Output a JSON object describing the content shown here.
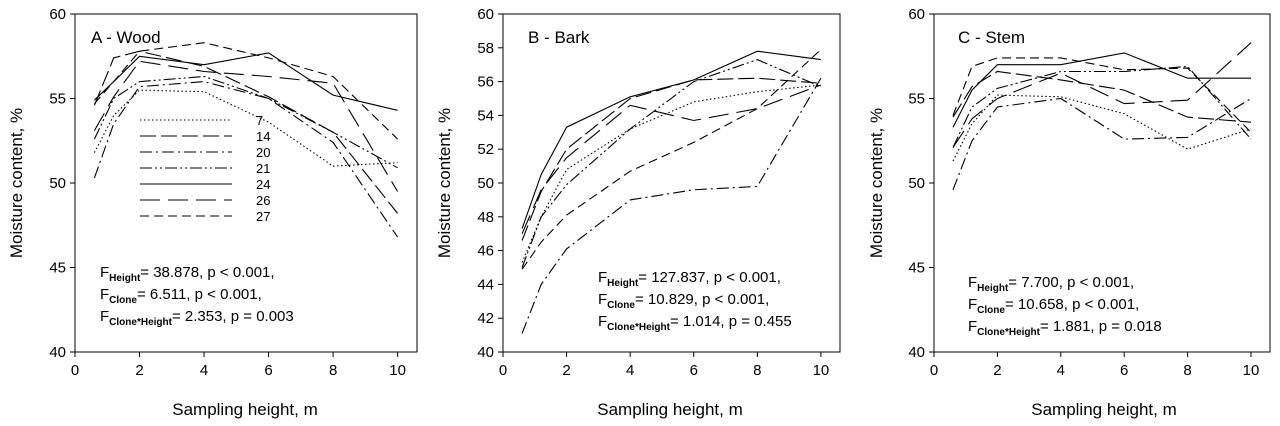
{
  "chart_data": [
    {
      "type": "line",
      "title": "A - Wood",
      "xlabel": "Sampling height, m",
      "ylabel": "Moisture content, %",
      "xlim": [
        0,
        10.6
      ],
      "ylim": [
        40,
        60
      ],
      "xticks": [
        "0",
        "2",
        "4",
        "6",
        "8",
        "10"
      ],
      "yticks": [
        "40",
        "45",
        "50",
        "55",
        "60"
      ],
      "legend_position": "middle-left",
      "series": [
        {
          "name": "7",
          "x": [
            0.6,
            1.2,
            2,
            4,
            6,
            8,
            10
          ],
          "y": [
            51.8,
            54.0,
            55.5,
            55.4,
            53.6,
            51.0,
            51.2
          ]
        },
        {
          "name": "14",
          "x": [
            0.6,
            1.2,
            2,
            4,
            6,
            8,
            10
          ],
          "y": [
            54.6,
            57.4,
            57.8,
            56.9,
            55.1,
            53.0,
            48.2
          ]
        },
        {
          "name": "20",
          "x": [
            0.6,
            1.2,
            2,
            4,
            6,
            8,
            10
          ],
          "y": [
            50.3,
            53.5,
            55.7,
            56.0,
            55.0,
            52.4,
            46.8
          ]
        },
        {
          "name": "21",
          "x": [
            0.6,
            1.2,
            2,
            4,
            6,
            8,
            10
          ],
          "y": [
            52.6,
            55.0,
            56.0,
            56.3,
            55.0,
            53.0,
            50.9
          ]
        },
        {
          "name": "24",
          "x": [
            0.6,
            1.2,
            2,
            4,
            6,
            8,
            10
          ],
          "y": [
            54.9,
            56.0,
            57.5,
            57.0,
            57.7,
            55.2,
            54.3
          ]
        },
        {
          "name": "26",
          "x": [
            0.6,
            1.2,
            2,
            4,
            6,
            8,
            10
          ],
          "y": [
            53.1,
            55.1,
            57.2,
            56.6,
            56.3,
            55.9,
            49.5
          ]
        },
        {
          "name": "27",
          "x": [
            0.6,
            1.2,
            2,
            4,
            6,
            8,
            10
          ],
          "y": [
            54.7,
            56.0,
            57.8,
            58.3,
            57.4,
            56.3,
            52.6
          ]
        }
      ],
      "stats": [
        {
          "f": "F",
          "sub": "Height",
          "text": "= 38.878, p < 0.001,"
        },
        {
          "f": "F",
          "sub": "Clone",
          "text": "= 6.511, p < 0.001,"
        },
        {
          "f": "F",
          "sub": "Clone*Height",
          "text": "= 2.353, p = 0.003"
        }
      ]
    },
    {
      "type": "line",
      "title": "B - Bark",
      "xlabel": "Sampling height, m",
      "ylabel": "Moisture content, %",
      "xlim": [
        0,
        10.6
      ],
      "ylim": [
        40,
        60
      ],
      "xticks": [
        "0",
        "2",
        "4",
        "6",
        "8",
        "10"
      ],
      "yticks": [
        "40",
        "42",
        "44",
        "46",
        "48",
        "50",
        "52",
        "54",
        "56",
        "58",
        "60"
      ],
      "series": [
        {
          "name": "7",
          "x": [
            0.6,
            1.2,
            2,
            4,
            6,
            8,
            10
          ],
          "y": [
            45.3,
            48.0,
            50.8,
            53.2,
            54.8,
            55.4,
            55.8
          ]
        },
        {
          "name": "14",
          "x": [
            0.6,
            1.2,
            2,
            4,
            6,
            8,
            10
          ],
          "y": [
            46.6,
            49.5,
            52.0,
            55.0,
            56.1,
            56.2,
            55.9
          ]
        },
        {
          "name": "20",
          "x": [
            0.6,
            1.2,
            2,
            4,
            6,
            8,
            10
          ],
          "y": [
            41.1,
            44.0,
            46.1,
            49.0,
            49.6,
            49.8,
            56.2
          ]
        },
        {
          "name": "21",
          "x": [
            0.6,
            1.2,
            2,
            4,
            6,
            8,
            10
          ],
          "y": [
            45.0,
            48.0,
            49.9,
            53.2,
            56.0,
            57.3,
            55.7
          ]
        },
        {
          "name": "24",
          "x": [
            0.6,
            1.2,
            2,
            4,
            6,
            8,
            10
          ],
          "y": [
            47.3,
            50.5,
            53.3,
            55.1,
            56.1,
            57.8,
            57.3
          ]
        },
        {
          "name": "26",
          "x": [
            0.6,
            1.2,
            2,
            4,
            6,
            8,
            10
          ],
          "y": [
            47.0,
            49.6,
            51.5,
            54.6,
            53.7,
            54.4,
            55.8
          ]
        },
        {
          "name": "27",
          "x": [
            0.6,
            1.2,
            2,
            4,
            6,
            8,
            10
          ],
          "y": [
            44.9,
            46.5,
            48.1,
            50.7,
            52.4,
            54.4,
            57.9
          ]
        }
      ],
      "stats": [
        {
          "f": "F",
          "sub": "Height",
          "text": "= 127.837, p < 0.001,"
        },
        {
          "f": "F",
          "sub": "Clone",
          "text": "= 10.829, p < 0.001,"
        },
        {
          "f": "F",
          "sub": "Clone*Height",
          "text": "= 1.014, p = 0.455"
        }
      ]
    },
    {
      "type": "line",
      "title": "C - Stem",
      "xlabel": "Sampling height, m",
      "ylabel": "Moisture content, %",
      "xlim": [
        0,
        10.6
      ],
      "ylim": [
        40,
        60
      ],
      "xticks": [
        "0",
        "2",
        "4",
        "6",
        "8",
        "10"
      ],
      "yticks": [
        "40",
        "45",
        "50",
        "55",
        "60"
      ],
      "series": [
        {
          "name": "7",
          "x": [
            0.6,
            1.2,
            2,
            4,
            6,
            8,
            10
          ],
          "y": [
            51.3,
            53.5,
            55.2,
            55.1,
            54.1,
            52.0,
            53.2
          ]
        },
        {
          "name": "14",
          "x": [
            0.6,
            1.2,
            2,
            4,
            6,
            8,
            10
          ],
          "y": [
            53.9,
            55.7,
            56.6,
            56.1,
            55.5,
            53.9,
            53.6
          ]
        },
        {
          "name": "20",
          "x": [
            0.6,
            1.2,
            2,
            4,
            6,
            8,
            10
          ],
          "y": [
            49.6,
            52.5,
            54.5,
            55.0,
            52.6,
            52.7,
            55.0
          ]
        },
        {
          "name": "21",
          "x": [
            0.6,
            1.2,
            2,
            4,
            6,
            8,
            10
          ],
          "y": [
            52.1,
            54.5,
            55.6,
            56.6,
            56.6,
            56.9,
            52.6
          ]
        },
        {
          "name": "24",
          "x": [
            0.6,
            1.2,
            2,
            4,
            6,
            8,
            10
          ],
          "y": [
            53.3,
            55.5,
            57.0,
            57.0,
            57.7,
            56.2,
            56.2
          ]
        },
        {
          "name": "26",
          "x": [
            0.6,
            1.2,
            2,
            4,
            6,
            8,
            10
          ],
          "y": [
            52.1,
            53.8,
            55.0,
            56.5,
            54.7,
            54.9,
            58.3
          ]
        },
        {
          "name": "27",
          "x": [
            0.6,
            1.2,
            2,
            4,
            6,
            8,
            10
          ],
          "y": [
            54.0,
            56.9,
            57.4,
            57.4,
            56.7,
            56.8,
            53.0
          ]
        }
      ],
      "stats": [
        {
          "f": "F",
          "sub": "Height",
          "text": "= 7.700, p < 0.001,"
        },
        {
          "f": "F",
          "sub": "Clone",
          "text": "= 10.658, p < 0.001,"
        },
        {
          "f": "F",
          "sub": "Clone*Height",
          "text": "= 1.881, p = 0.018"
        }
      ]
    }
  ],
  "styles": {
    "7": "dotted",
    "14": "long-dash",
    "20": "dash-dot",
    "21": "dash-dot-dot",
    "24": "solid",
    "26": "long-dash-wide",
    "27": "medium-dash"
  }
}
